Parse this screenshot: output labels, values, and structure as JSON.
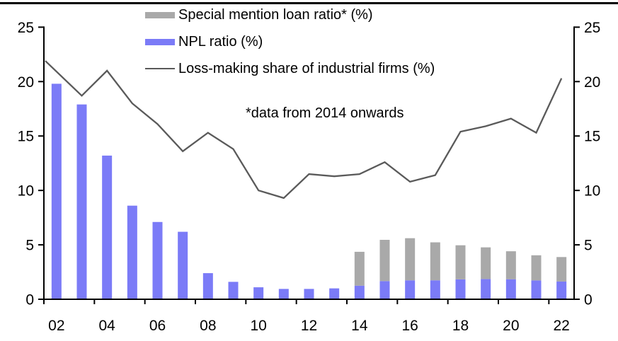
{
  "page": {
    "background": "#ffffff",
    "top_border_color": "#000000"
  },
  "chart_data": {
    "type": "combo-bar-line",
    "categories": [
      "2002",
      "2003",
      "2004",
      "2005",
      "2006",
      "2007",
      "2008",
      "2009",
      "2010",
      "2011",
      "2012",
      "2013",
      "2014",
      "2015",
      "2016",
      "2017",
      "2018",
      "2019",
      "2020",
      "2021",
      "2022"
    ],
    "x_tick_labels": [
      "02",
      "04",
      "06",
      "08",
      "10",
      "12",
      "14",
      "16",
      "18",
      "20",
      "22"
    ],
    "y_tick_labels": [
      "0",
      "5",
      "10",
      "15",
      "20",
      "25"
    ],
    "yticks": [
      0,
      5,
      10,
      15,
      20,
      25
    ],
    "ylim": [
      0,
      25
    ],
    "grid": false,
    "legend_position": "top-center",
    "dual_y_axes": true,
    "annotation": "*data from 2014 onwards",
    "series": [
      {
        "name": "Special mention loan ratio* (%)",
        "kind": "bar-stacked-on-npl",
        "color": "#a9a9a9",
        "values": [
          null,
          null,
          null,
          null,
          null,
          null,
          null,
          null,
          null,
          null,
          null,
          null,
          3.11,
          3.79,
          3.87,
          3.49,
          3.13,
          2.91,
          2.57,
          2.31,
          2.25
        ]
      },
      {
        "name": "NPL ratio (%)",
        "kind": "bar",
        "color": "#7b7bf7",
        "values": [
          19.8,
          17.9,
          13.2,
          8.6,
          7.1,
          6.2,
          2.4,
          1.6,
          1.1,
          0.95,
          0.95,
          1.0,
          1.25,
          1.67,
          1.74,
          1.74,
          1.83,
          1.86,
          1.84,
          1.73,
          1.63
        ]
      },
      {
        "name": "Loss-making share of industrial firms (%)",
        "kind": "line",
        "color": "#5a5a5a",
        "values": [
          21.9,
          18.7,
          21.0,
          18.0,
          16.1,
          13.6,
          15.3,
          13.8,
          10.0,
          9.3,
          11.5,
          11.3,
          11.5,
          12.6,
          10.8,
          11.4,
          15.4,
          15.9,
          16.6,
          15.3,
          20.3
        ]
      }
    ],
    "axis_color": "#000000"
  }
}
